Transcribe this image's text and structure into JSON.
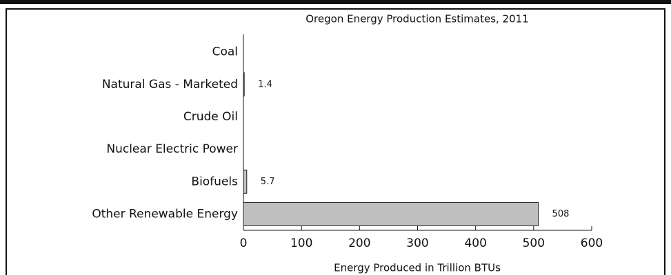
{
  "chart_data": {
    "type": "bar",
    "orientation": "horizontal",
    "title": "Oregon Energy Production Estimates, 2011",
    "x_label": "Energy Produced in Trillion BTUs",
    "categories": [
      "Coal",
      "Natural Gas - Marketed",
      "Crude Oil",
      "Nuclear Electric Power",
      "Biofuels",
      "Other Renewable Energy"
    ],
    "values": [
      0,
      1.4,
      0,
      0,
      5.7,
      508
    ],
    "value_labels": [
      null,
      "1.4",
      null,
      null,
      "5.7",
      "508"
    ],
    "color": "#c0c0c0",
    "xlim": [
      0,
      600
    ],
    "xticks": [
      0,
      100,
      200,
      300,
      400,
      500,
      600
    ],
    "grid": false
  }
}
